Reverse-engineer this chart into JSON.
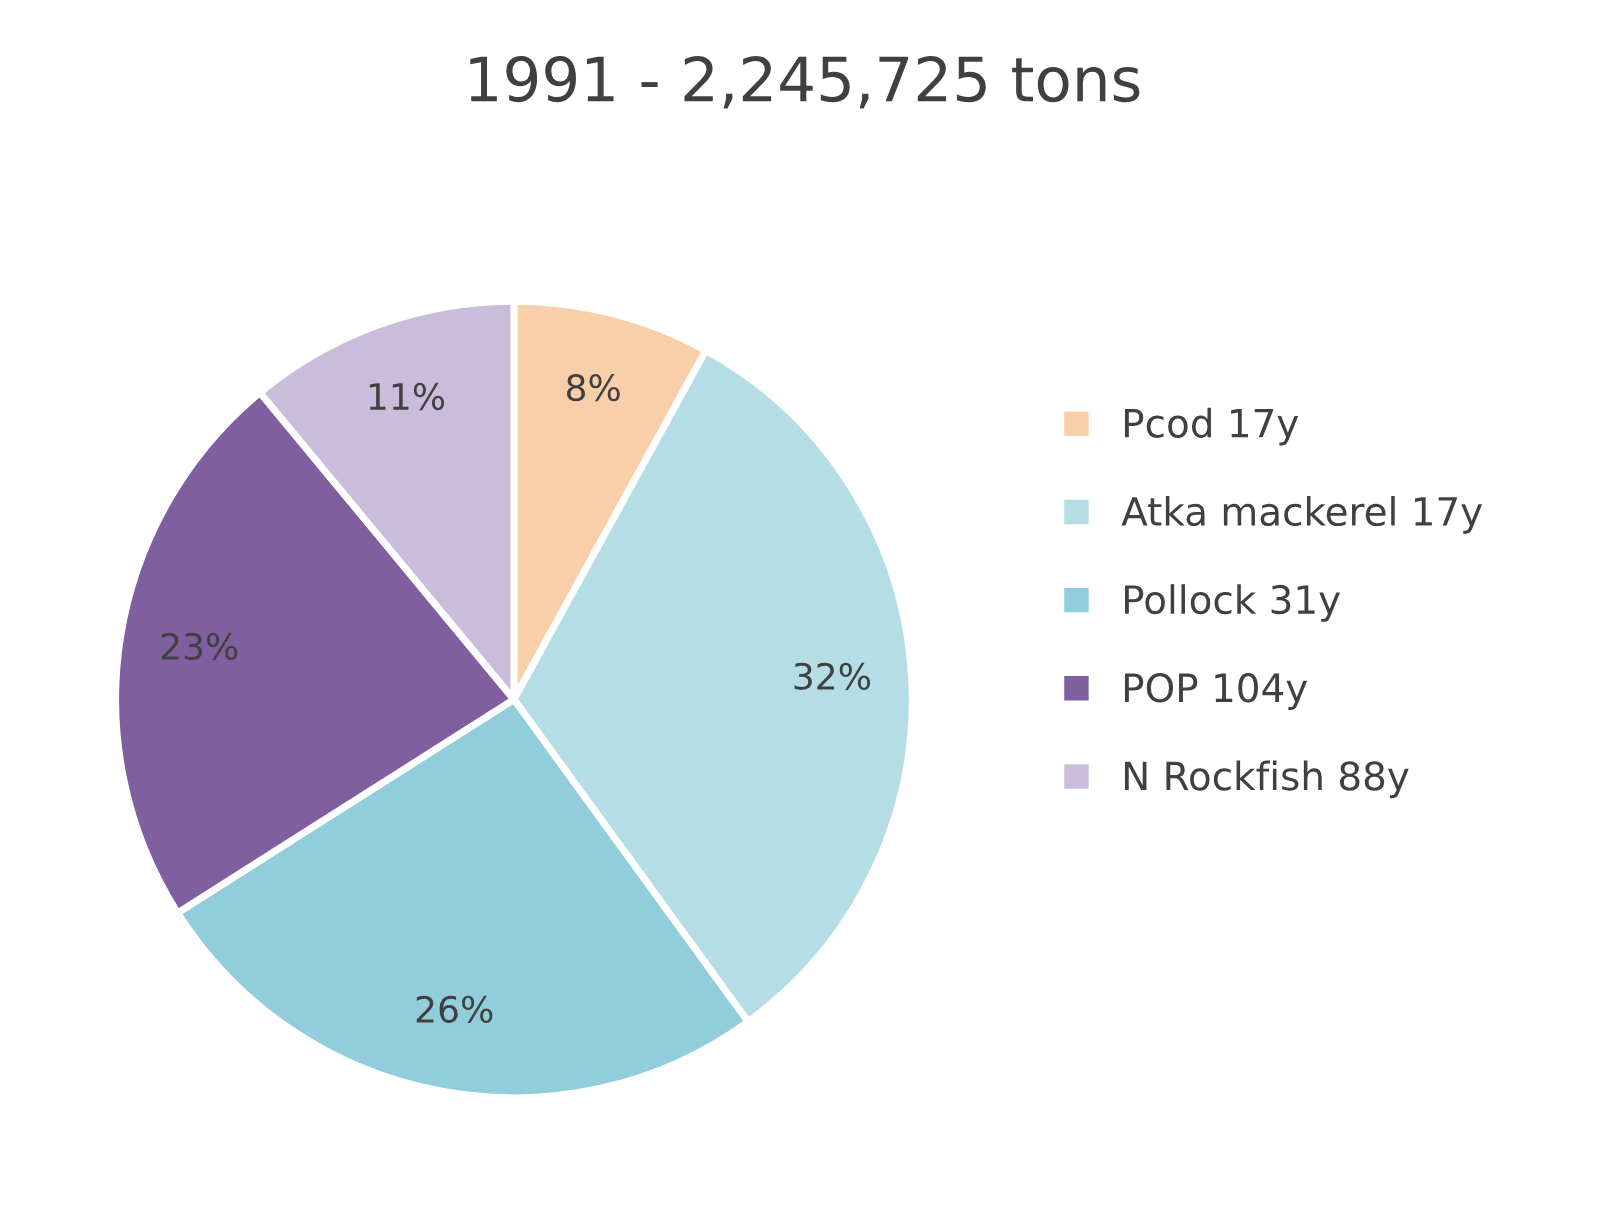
{
  "chart_data": {
    "type": "pie",
    "title": "1991 - 2,245,725 tons",
    "categories": [
      "Pcod 17y",
      "Atka mackerel 17y",
      "Pollock 31y",
      "POP 104y",
      "N Rockfish 88y"
    ],
    "values": [
      8,
      32,
      26,
      23,
      11
    ],
    "colors": [
      "#f8cfa9",
      "#b5dde6",
      "#92cddc",
      "#7f5fa0",
      "#cabddc"
    ],
    "value_labels": [
      "8%",
      "32%",
      "26%",
      "23%",
      "11%"
    ],
    "legend": "right"
  }
}
